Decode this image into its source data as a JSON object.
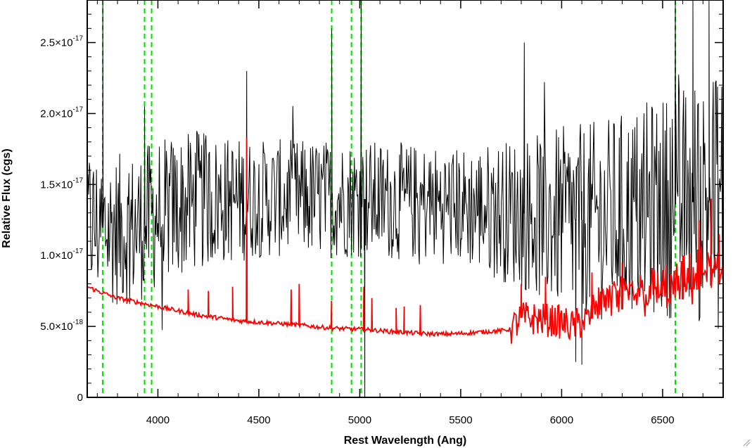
{
  "chart_data": {
    "type": "line",
    "xlabel": "Rest Wavelength (Ang)",
    "ylabel": "Relative Flux (cgs)",
    "xlim": [
      3650,
      6800
    ],
    "ylim": [
      0,
      2.8e-17
    ],
    "x_ticks": [
      4000,
      4500,
      5000,
      5500,
      6000,
      6500
    ],
    "x_tick_labels": [
      "4000",
      "4500",
      "5000",
      "5500",
      "6000",
      "6500"
    ],
    "y_ticks": [
      {
        "value": 0,
        "mantissa": "0",
        "exponent": ""
      },
      {
        "value": 5e-18,
        "mantissa": "5.0×10",
        "exponent": "-18"
      },
      {
        "value": 1e-17,
        "mantissa": "1.0×10",
        "exponent": "-17"
      },
      {
        "value": 1.5e-17,
        "mantissa": "1.5×10",
        "exponent": "-17"
      },
      {
        "value": 2e-17,
        "mantissa": "2.0×10",
        "exponent": "-17"
      },
      {
        "value": 2.5e-17,
        "mantissa": "2.5×10",
        "exponent": "-17"
      }
    ],
    "vertical_lines": {
      "color": "#00dd00",
      "style": "dashed",
      "x": [
        3727,
        3934,
        3969,
        4861,
        4959,
        5007,
        6563
      ]
    },
    "series": [
      {
        "color": "#000000",
        "style": "noisy",
        "baseline": [
          [
            3650,
            1.25e-17
          ],
          [
            3700,
            1.2e-17
          ],
          [
            3800,
            1.18e-17
          ],
          [
            3900,
            1.2e-17
          ],
          [
            4000,
            1.3e-17
          ],
          [
            4200,
            1.38e-17
          ],
          [
            4500,
            1.4e-17
          ],
          [
            4800,
            1.4e-17
          ],
          [
            5000,
            1.4e-17
          ],
          [
            5200,
            1.38e-17
          ],
          [
            5500,
            1.35e-17
          ],
          [
            5800,
            1.3e-17
          ],
          [
            6000,
            1.25e-17
          ],
          [
            6200,
            1.25e-17
          ],
          [
            6500,
            1.35e-17
          ],
          [
            6800,
            1.4e-17
          ]
        ],
        "noise": [
          [
            3650,
            4.5e-18
          ],
          [
            3800,
            4.5e-18
          ],
          [
            4000,
            4.5e-18
          ],
          [
            4500,
            3.5e-18
          ],
          [
            5000,
            3.5e-18
          ],
          [
            5500,
            3.5e-18
          ],
          [
            5800,
            4.5e-18
          ],
          [
            6000,
            5.5e-18
          ],
          [
            6500,
            6.5e-18
          ],
          [
            6800,
            8e-18
          ]
        ],
        "spikes": [
          [
            3727,
            2.8e-17
          ],
          [
            3934,
            2.05e-17
          ],
          [
            4440,
            2.3e-17
          ],
          [
            4861,
            2.6e-17
          ],
          [
            5007,
            2.8e-17
          ],
          [
            5025,
            0
          ],
          [
            5815,
            2.5e-17
          ],
          [
            6070,
            2.5e-18
          ],
          [
            6100,
            2.3e-18
          ],
          [
            6563,
            2.8e-17
          ],
          [
            6650,
            2.8e-17
          ],
          [
            6730,
            2.8e-17
          ]
        ]
      },
      {
        "color": "#ff0000",
        "style": "smooth",
        "points": [
          [
            3650,
            7.8e-18
          ],
          [
            3700,
            7.5e-18
          ],
          [
            3800,
            7e-18
          ],
          [
            3900,
            6.7e-18
          ],
          [
            4000,
            6.4e-18
          ],
          [
            4100,
            6.1e-18
          ],
          [
            4200,
            5.8e-18
          ],
          [
            4300,
            5.6e-18
          ],
          [
            4400,
            5.4e-18
          ],
          [
            4500,
            5.3e-18
          ],
          [
            4600,
            5.2e-18
          ],
          [
            4700,
            5.1e-18
          ],
          [
            4800,
            4.95e-18
          ],
          [
            4900,
            4.85e-18
          ],
          [
            5000,
            4.8e-18
          ],
          [
            5100,
            4.7e-18
          ],
          [
            5200,
            4.6e-18
          ],
          [
            5300,
            4.5e-18
          ],
          [
            5400,
            4.45e-18
          ],
          [
            5500,
            4.5e-18
          ],
          [
            5600,
            4.6e-18
          ],
          [
            5700,
            4.7e-18
          ],
          [
            5750,
            4.8e-18
          ],
          [
            5800,
            5.6e-18
          ],
          [
            5900,
            5.5e-18
          ],
          [
            6000,
            5.3e-18
          ],
          [
            6050,
            5e-18
          ],
          [
            6100,
            5.3e-18
          ],
          [
            6200,
            5.8e-18
          ],
          [
            6300,
            6.2e-18
          ],
          [
            6400,
            6.4e-18
          ],
          [
            6500,
            6.5e-18
          ],
          [
            6600,
            6.9e-18
          ],
          [
            6700,
            7.8e-18
          ],
          [
            6800,
            8e-18
          ]
        ],
        "spikes": [
          [
            4150,
            7.6e-18
          ],
          [
            4250,
            7.5e-18
          ],
          [
            4370,
            7.8e-18
          ],
          [
            4440,
            1.83e-17
          ],
          [
            4660,
            7.6e-18
          ],
          [
            4700,
            8e-18
          ],
          [
            4860,
            6.8e-18
          ],
          [
            5020,
            7.8e-18
          ],
          [
            5060,
            7e-18
          ],
          [
            5180,
            6.3e-18
          ],
          [
            5220,
            6.4e-18
          ],
          [
            5300,
            6.5e-18
          ],
          [
            5800,
            8e-18
          ],
          [
            5920,
            8.5e-18
          ],
          [
            6150,
            8.8e-18
          ],
          [
            6300,
            9.5e-18
          ],
          [
            6600,
            1e-17
          ],
          [
            6680,
            1.25e-17
          ],
          [
            6740,
            1.4e-17
          ],
          [
            6780,
            1.15e-17
          ]
        ]
      }
    ]
  }
}
